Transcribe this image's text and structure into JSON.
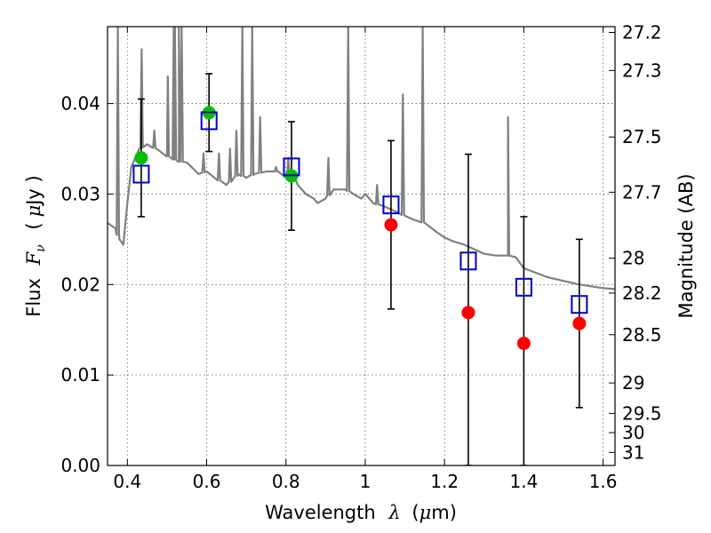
{
  "chart_data": {
    "type": "scatter",
    "xlabel": {
      "prefix": "Wavelength",
      "symbol": "λ",
      "unit_open": "(",
      "unit_mu": "μ",
      "unit_rest": "m)"
    },
    "ylabel": {
      "prefix": "Flux",
      "symbol": "F",
      "sub": "ν",
      "unit_open": "(",
      "unit_mu": "μ",
      "unit_rest": "Jy )"
    },
    "y2label": "Magnitude (AB)",
    "xlim": [
      0.35,
      1.63
    ],
    "ylim": [
      0.0,
      0.0485
    ],
    "xticks": [
      0.4,
      0.6,
      0.8,
      1.0,
      1.2,
      1.4,
      1.6
    ],
    "xtick_labels": [
      "0.4",
      "0.6",
      "0.8",
      "1",
      "1.2",
      "1.4",
      "1.6"
    ],
    "yticks": [
      0.0,
      0.01,
      0.02,
      0.03,
      0.04
    ],
    "ytick_labels": [
      "0.00",
      "0.01",
      "0.02",
      "0.03",
      "0.04"
    ],
    "mag_ticks": [
      "27.2",
      "27.3",
      "27.5",
      "27.7",
      "28",
      "28.2",
      "28.5",
      "29",
      "29.5",
      "30",
      "31"
    ],
    "grid": true,
    "series": [
      {
        "kind": "observed-detection",
        "marker": "circle",
        "color": "#00c000",
        "points": [
          {
            "x": 0.435,
            "y": 0.034,
            "yerr": 0.0065
          },
          {
            "x": 0.606,
            "y": 0.039,
            "yerr": 0.0043
          },
          {
            "x": 0.814,
            "y": 0.032,
            "yerr": 0.006
          }
        ]
      },
      {
        "kind": "observed-marginal",
        "marker": "circle",
        "color": "#ff0000",
        "points": [
          {
            "x": 1.065,
            "y": 0.0266,
            "yerr": 0.0093
          },
          {
            "x": 1.26,
            "y": 0.0169,
            "yerr": 0.0175
          },
          {
            "x": 1.4,
            "y": 0.0135,
            "yerr": 0.014
          },
          {
            "x": 1.54,
            "y": 0.0157,
            "yerr": 0.0093
          }
        ]
      },
      {
        "kind": "model-photometry",
        "marker": "open-square",
        "color": "#0000cc",
        "points": [
          {
            "x": 0.435,
            "y": 0.0322
          },
          {
            "x": 0.606,
            "y": 0.0381
          },
          {
            "x": 0.814,
            "y": 0.033
          },
          {
            "x": 1.065,
            "y": 0.0288
          },
          {
            "x": 1.26,
            "y": 0.0226
          },
          {
            "x": 1.4,
            "y": 0.0197
          },
          {
            "x": 1.54,
            "y": 0.0178
          }
        ]
      }
    ],
    "model_spectrum": {
      "color": "#808080",
      "continuum": [
        [
          0.35,
          0.0268
        ],
        [
          0.37,
          0.0262
        ],
        [
          0.38,
          0.025
        ],
        [
          0.39,
          0.0244
        ],
        [
          0.4,
          0.029
        ],
        [
          0.41,
          0.033
        ],
        [
          0.42,
          0.034
        ],
        [
          0.43,
          0.035
        ],
        [
          0.45,
          0.0355
        ],
        [
          0.48,
          0.0348
        ],
        [
          0.5,
          0.0342
        ],
        [
          0.53,
          0.0336
        ],
        [
          0.55,
          0.0335
        ],
        [
          0.58,
          0.0322
        ],
        [
          0.6,
          0.0325
        ],
        [
          0.62,
          0.0318
        ],
        [
          0.65,
          0.031
        ],
        [
          0.68,
          0.0322
        ],
        [
          0.7,
          0.0318
        ],
        [
          0.72,
          0.0322
        ],
        [
          0.75,
          0.0325
        ],
        [
          0.78,
          0.0325
        ],
        [
          0.8,
          0.0318
        ],
        [
          0.82,
          0.032
        ],
        [
          0.83,
          0.031
        ],
        [
          0.85,
          0.03
        ],
        [
          0.87,
          0.0295
        ],
        [
          0.88,
          0.029
        ],
        [
          0.9,
          0.0295
        ],
        [
          0.92,
          0.0305
        ],
        [
          0.95,
          0.0305
        ],
        [
          0.97,
          0.03
        ],
        [
          0.99,
          0.0295
        ],
        [
          1.0,
          0.03
        ],
        [
          1.02,
          0.029
        ],
        [
          1.05,
          0.0286
        ],
        [
          1.08,
          0.028
        ],
        [
          1.1,
          0.0276
        ],
        [
          1.12,
          0.0272
        ],
        [
          1.15,
          0.0268
        ],
        [
          1.18,
          0.0258
        ],
        [
          1.2,
          0.0252
        ],
        [
          1.22,
          0.0248
        ],
        [
          1.25,
          0.0244
        ],
        [
          1.28,
          0.0238
        ],
        [
          1.3,
          0.0234
        ],
        [
          1.33,
          0.0232
        ],
        [
          1.36,
          0.0232
        ],
        [
          1.38,
          0.023
        ],
        [
          1.4,
          0.0218
        ],
        [
          1.43,
          0.0213
        ],
        [
          1.46,
          0.0208
        ],
        [
          1.5,
          0.0204
        ],
        [
          1.54,
          0.02
        ],
        [
          1.57,
          0.0198
        ],
        [
          1.6,
          0.0196
        ],
        [
          1.63,
          0.0195
        ]
      ],
      "emission_lines": [
        {
          "x": 0.376,
          "peak": 0.0485
        },
        {
          "x": 0.436,
          "peak": 0.046
        },
        {
          "x": 0.468,
          "peak": 0.037
        },
        {
          "x": 0.502,
          "peak": 0.043
        },
        {
          "x": 0.517,
          "peak": 0.0485
        },
        {
          "x": 0.52,
          "peak": 0.0485
        },
        {
          "x": 0.53,
          "peak": 0.0485
        },
        {
          "x": 0.537,
          "peak": 0.0485
        },
        {
          "x": 0.592,
          "peak": 0.0345
        },
        {
          "x": 0.631,
          "peak": 0.0345
        },
        {
          "x": 0.659,
          "peak": 0.035
        },
        {
          "x": 0.675,
          "peak": 0.037
        },
        {
          "x": 0.69,
          "peak": 0.0485
        },
        {
          "x": 0.715,
          "peak": 0.0485
        },
        {
          "x": 0.735,
          "peak": 0.0385
        },
        {
          "x": 0.775,
          "peak": 0.033
        },
        {
          "x": 0.806,
          "peak": 0.034
        },
        {
          "x": 0.907,
          "peak": 0.034
        },
        {
          "x": 0.957,
          "peak": 0.0485
        },
        {
          "x": 1.03,
          "peak": 0.031
        },
        {
          "x": 1.095,
          "peak": 0.041
        },
        {
          "x": 1.145,
          "peak": 0.0485
        },
        {
          "x": 1.36,
          "peak": 0.0385
        }
      ]
    }
  }
}
